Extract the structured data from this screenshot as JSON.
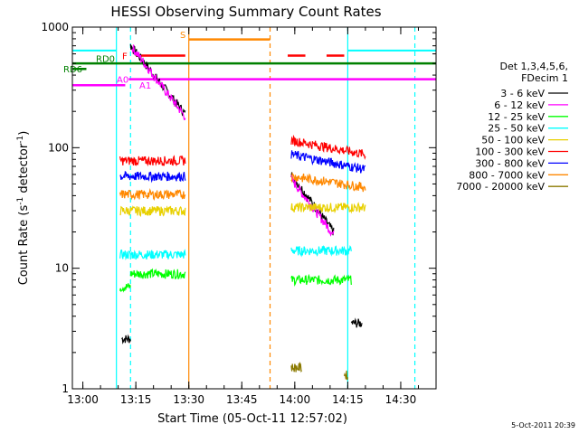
{
  "chart_data": {
    "type": "line",
    "title": "HESSI Observing Summary Count Rates",
    "xlabel": "Start Time (05-Oct-11 12:57:02)",
    "ylabel": "Count Rate (s",
    "ylabel_sup1": "-1",
    "ylabel_mid": " detector",
    "ylabel_sup2": "-1",
    "ylabel_end": ")",
    "y_scale": "log",
    "ylim": [
      1,
      1000
    ],
    "xlim": [
      "12:57:02",
      "14:40:00"
    ],
    "x_ticks": [
      "13:00",
      "13:15",
      "13:30",
      "13:45",
      "14:00",
      "14:15",
      "14:30"
    ],
    "y_ticks": [
      "1",
      "10",
      "100",
      "1000"
    ],
    "timestamp": "5-Oct-2011 20:39",
    "legend": {
      "placement": "right",
      "header1": "Det 1,3,4,5,6,",
      "header2": "FDecim 1",
      "entries": [
        {
          "label": "3 - 6 keV",
          "color": "#000000"
        },
        {
          "label": "6 - 12 keV",
          "color": "#ff00ff"
        },
        {
          "label": "12 - 25 keV",
          "color": "#00ff00"
        },
        {
          "label": "25 - 50 keV",
          "color": "#00ffff"
        },
        {
          "label": "50 - 100 keV",
          "color": "#e8d000"
        },
        {
          "label": "100 - 300 keV",
          "color": "#ff0000"
        },
        {
          "label": "300 - 800 keV",
          "color": "#0000ff"
        },
        {
          "label": "800 - 7000 keV",
          "color": "#ff8800"
        },
        {
          "label": "7000 - 20000 keV",
          "color": "#8b7a00"
        }
      ]
    },
    "series": [
      {
        "name": "3 - 6 keV",
        "color": "#000000",
        "segments": [
          {
            "start": "13:11:00",
            "end": "13:13:30",
            "level": 2.6
          },
          {
            "start": "13:13:30",
            "end": "13:29:00",
            "from": 700,
            "to": 190
          },
          {
            "start": "13:59:00",
            "end": "14:11:00",
            "from": 60,
            "to": 20
          },
          {
            "start": "14:16:00",
            "end": "14:19:00",
            "level": 3.5
          }
        ]
      },
      {
        "name": "6 - 12 keV",
        "color": "#ff00ff",
        "segments": [
          {
            "start": "13:14:00",
            "end": "13:29:00",
            "from": 680,
            "to": 180
          },
          {
            "start": "13:59:00",
            "end": "14:11:00",
            "from": 55,
            "to": 19
          }
        ]
      },
      {
        "name": "12 - 25 keV",
        "color": "#00ff00",
        "segments": [
          {
            "start": "13:10:30",
            "end": "13:13:30",
            "level": 7
          },
          {
            "start": "13:13:30",
            "end": "13:29:00",
            "level": 9
          },
          {
            "start": "13:59:00",
            "end": "14:16:00",
            "level": 8
          }
        ]
      },
      {
        "name": "25 - 50 keV",
        "color": "#00ffff",
        "segments": [
          {
            "start": "13:10:30",
            "end": "13:29:00",
            "level": 13
          },
          {
            "start": "13:59:00",
            "end": "14:16:00",
            "level": 14
          }
        ]
      },
      {
        "name": "50 - 100 keV",
        "color": "#e8d000",
        "segments": [
          {
            "start": "13:10:30",
            "end": "13:29:00",
            "level": 30
          },
          {
            "start": "13:59:00",
            "end": "14:20:00",
            "level": 32
          }
        ]
      },
      {
        "name": "100 - 300 keV",
        "color": "#ff0000",
        "segments": [
          {
            "start": "13:10:30",
            "end": "13:29:00",
            "level": 78
          },
          {
            "start": "13:59:00",
            "end": "14:20:00",
            "from": 115,
            "to": 88
          }
        ]
      },
      {
        "name": "300 - 800 keV",
        "color": "#0000ff",
        "segments": [
          {
            "start": "13:10:30",
            "end": "13:29:00",
            "level": 58
          },
          {
            "start": "13:59:00",
            "end": "14:20:00",
            "from": 88,
            "to": 66
          }
        ]
      },
      {
        "name": "800 - 7000 keV",
        "color": "#ff8800",
        "segments": [
          {
            "start": "13:10:30",
            "end": "13:29:00",
            "level": 41
          },
          {
            "start": "13:59:00",
            "end": "14:20:00",
            "from": 58,
            "to": 47
          }
        ]
      },
      {
        "name": "7000 - 20000 keV",
        "color": "#8b7a00",
        "segments": [
          {
            "start": "13:59:00",
            "end": "14:02:00",
            "level": 1.5
          },
          {
            "start": "14:14:00",
            "end": "14:15:00",
            "level": 1.3
          }
        ]
      }
    ],
    "flags": [
      {
        "label": "RD6",
        "color": "#008000",
        "start": "12:57:02",
        "end": "13:01:00",
        "value": 450
      },
      {
        "label": "RD0",
        "color": "#008000",
        "start": "12:57:02",
        "end": "14:40:00",
        "value": 500
      },
      {
        "label": "F",
        "color": "#ff0000",
        "start": "13:15:00",
        "end": "13:29:00",
        "value": 580
      },
      {
        "label": "F",
        "color": "#ff0000",
        "start": "13:58:00",
        "end": "14:03:00",
        "value": 580
      },
      {
        "label": "F",
        "color": "#ff0000",
        "start": "14:09:00",
        "end": "14:14:00",
        "value": 580
      },
      {
        "label": "S",
        "color": "#ff8800",
        "start": "13:30:00",
        "end": "13:53:00",
        "value": 790
      },
      {
        "label": "A0",
        "color": "#ff00ff",
        "start": "13:13:00",
        "end": "14:40:00",
        "value": 370
      },
      {
        "label": "A1",
        "color": "#ff00ff",
        "start": "12:57:02",
        "end": "13:12:00",
        "value": 330
      }
    ],
    "markers": [
      {
        "time": "13:09:30",
        "color": "#00ffff",
        "style": "solid"
      },
      {
        "time": "13:13:30",
        "color": "#00ffff",
        "style": "dashed"
      },
      {
        "time": "14:15:00",
        "color": "#00ffff",
        "style": "solid"
      },
      {
        "time": "14:34:00",
        "color": "#00ffff",
        "style": "dashed"
      },
      {
        "time": "13:30:00",
        "color": "#ff8800",
        "style": "solid"
      },
      {
        "time": "13:53:00",
        "color": "#ff8800",
        "style": "dashed"
      }
    ],
    "cyan_top_bars": [
      {
        "start": "12:57:02",
        "end": "13:09:30",
        "value": 640
      },
      {
        "start": "14:15:00",
        "end": "14:40:00",
        "value": 640
      }
    ]
  }
}
